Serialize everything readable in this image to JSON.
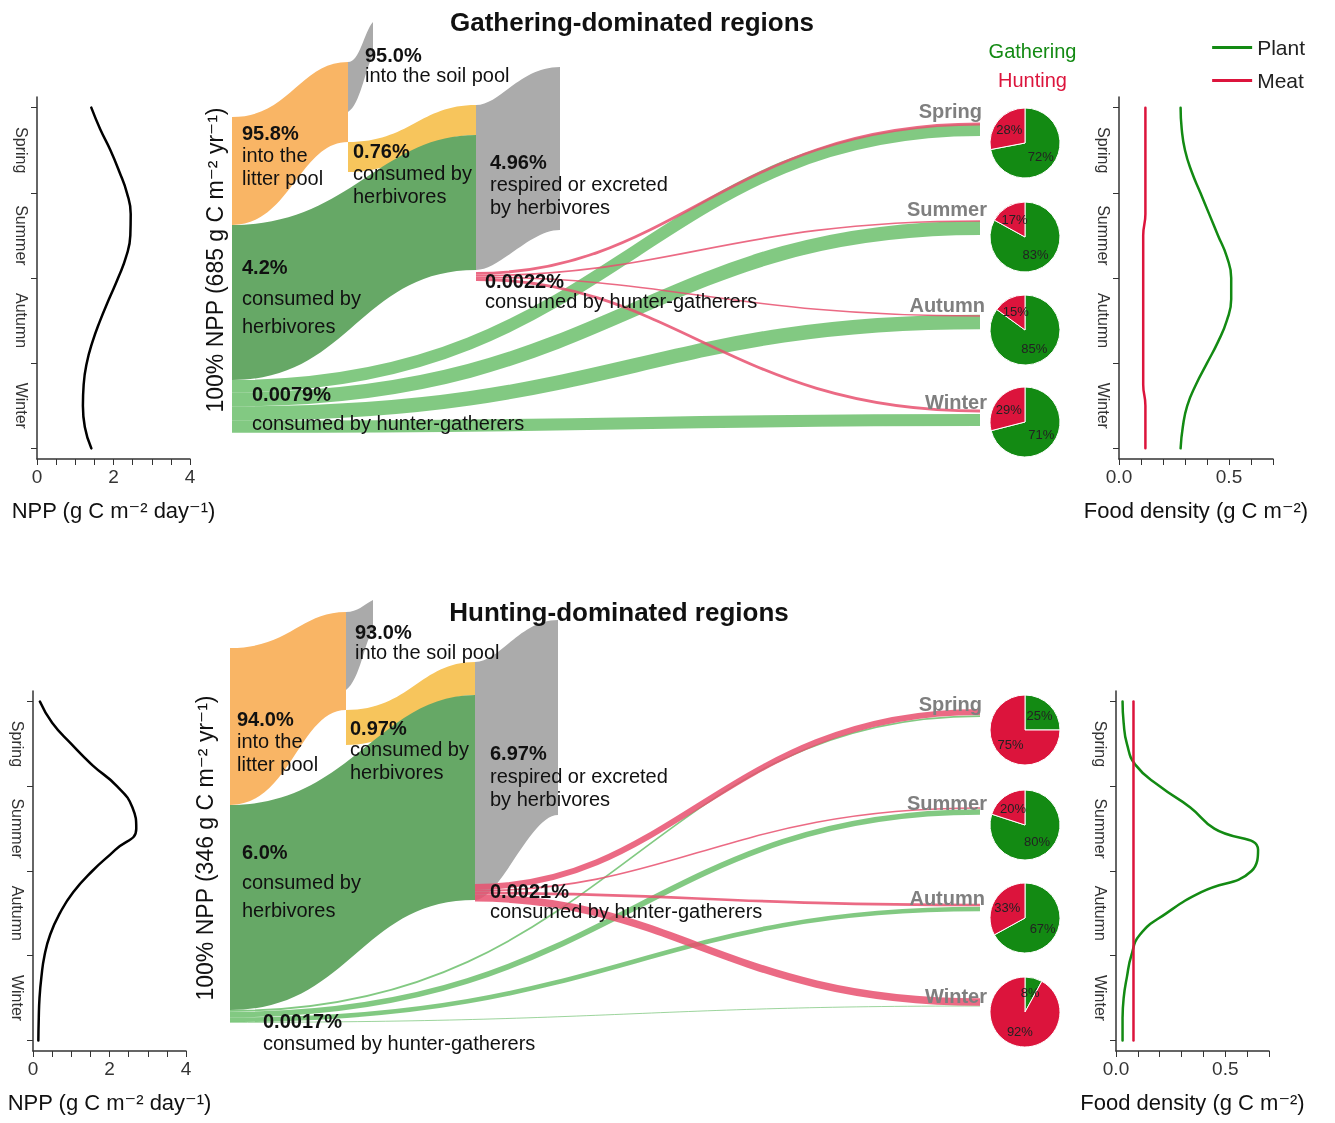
{
  "chart_data": [
    {
      "type": "line",
      "orientation": "horizontal",
      "categories": [
        null,
        null,
        "Spring",
        null,
        null,
        null,
        "Summer",
        null,
        null,
        null,
        "Autumn",
        null,
        null,
        null,
        "Winter",
        null,
        null
      ],
      "values": [
        1.42,
        1.65,
        1.92,
        2.15,
        2.35,
        2.45,
        2.44,
        2.33,
        2.12,
        1.88,
        1.65,
        1.45,
        1.3,
        1.22,
        1.2,
        1.25,
        1.42
      ],
      "color": "#000000",
      "xlim": [
        0,
        4
      ],
      "xticks": [
        0,
        {
          "value": 0.5,
          "label": null
        },
        {
          "value": 1,
          "label": null
        },
        {
          "value": 1.5,
          "label": null
        },
        2,
        {
          "value": 2.5,
          "label": null
        },
        {
          "value": 3,
          "label": null
        },
        {
          "value": 3.5,
          "label": null
        },
        4
      ],
      "xlabel": "NPP (g C m⁻² day⁻¹)",
      "marker": "none",
      "grid": false
    },
    {
      "type": "other",
      "title": "Gathering-dominated regions",
      "ylabel": "100% NPP (685 g C m⁻² yr⁻¹)",
      "annotations": [
        "95.8%",
        "into the litter pool",
        "95.0%",
        "into the soil pool",
        "0.76%",
        "consumed by herbivores",
        "4.96%",
        "respired or excreted by herbivores",
        "4.2%",
        "consumed by herbivores",
        "0.0022%",
        "consumed by hunter-gatherers",
        "0.0079%",
        "consumed by hunter-gatherers",
        "Spring",
        "Summer",
        "Autumn",
        "Winter"
      ]
    },
    {
      "type": "pie",
      "categories": [
        "Gathering",
        "Hunting"
      ],
      "values": [
        72,
        28
      ],
      "colors": [
        "#138a13",
        "#dc143c"
      ],
      "value_labels": [
        "72%",
        "28%"
      ]
    },
    {
      "type": "pie",
      "categories": [
        null,
        null
      ],
      "values": [
        83,
        17
      ],
      "colors": [
        "#138a13",
        "#dc143c"
      ],
      "value_labels": [
        "83%",
        "17%"
      ]
    },
    {
      "type": "pie",
      "categories": [
        null,
        null
      ],
      "values": [
        85,
        15
      ],
      "colors": [
        "#138a13",
        "#dc143c"
      ],
      "value_labels": [
        "85%",
        "15%"
      ]
    },
    {
      "type": "pie",
      "categories": [
        null,
        null
      ],
      "values": [
        71,
        29
      ],
      "colors": [
        "#138a13",
        "#dc143c"
      ],
      "value_labels": [
        "71%",
        "29%"
      ]
    },
    {
      "type": "line",
      "orientation": "horizontal",
      "categories": [
        null,
        null,
        "Spring",
        null,
        null,
        null,
        "Summer",
        null,
        null,
        null,
        "Autumn",
        null,
        null,
        null,
        "Winter",
        null,
        null
      ],
      "series": [
        {
          "name": "Plant",
          "color": "#138a13",
          "values": [
            0.28,
            0.285,
            0.3,
            0.33,
            0.37,
            0.41,
            0.45,
            0.49,
            0.51,
            0.51,
            0.49,
            0.45,
            0.4,
            0.35,
            0.31,
            0.29,
            0.28
          ]
        },
        {
          "name": "Meat",
          "color": "#dc143c",
          "values": [
            0.12,
            0.12,
            0.12,
            0.12,
            0.12,
            0.12,
            0.11,
            0.11,
            0.11,
            0.11,
            0.11,
            0.11,
            0.11,
            0.11,
            0.12,
            0.12,
            0.12
          ]
        }
      ],
      "xlim": [
        0,
        0.7
      ],
      "xticks": [
        {
          "value": 0,
          "label": "0.0"
        },
        {
          "value": 0.1,
          "label": null
        },
        {
          "value": 0.2,
          "label": null
        },
        {
          "value": 0.3,
          "label": null
        },
        {
          "value": 0.4,
          "label": null
        },
        {
          "value": 0.5,
          "label": "0.5"
        },
        {
          "value": 0.6,
          "label": null
        },
        {
          "value": 0.7,
          "label": null
        }
      ],
      "xlabel": "Food density (g C m⁻²)",
      "marker": "none",
      "grid": false,
      "legend": "top right"
    },
    {
      "type": "line",
      "orientation": "horizontal",
      "categories": [
        null,
        null,
        "Spring",
        null,
        null,
        null,
        "Summer",
        null,
        null,
        null,
        "Autumn",
        null,
        null,
        null,
        "Winter",
        null,
        null
      ],
      "values": [
        0.18,
        0.5,
        1.0,
        1.55,
        2.2,
        2.6,
        2.7,
        2.15,
        1.55,
        1.05,
        0.7,
        0.45,
        0.3,
        0.22,
        0.17,
        0.15,
        0.14
      ],
      "color": "#000000",
      "xlim": [
        0,
        4
      ],
      "xticks": [
        0,
        {
          "value": 0.5,
          "label": null
        },
        {
          "value": 1,
          "label": null
        },
        {
          "value": 1.5,
          "label": null
        },
        2,
        {
          "value": 2.5,
          "label": null
        },
        {
          "value": 3,
          "label": null
        },
        {
          "value": 3.5,
          "label": null
        },
        4
      ],
      "xlabel": "NPP (g C m⁻² day⁻¹)",
      "marker": "none",
      "grid": false
    },
    {
      "type": "other",
      "title": "Hunting-dominated regions",
      "ylabel": "100% NPP (346 g C m⁻² yr⁻¹)",
      "annotations": [
        "94.0%",
        "into the litter pool",
        "93.0%",
        "into the soil pool",
        "0.97%",
        "consumed by herbivores",
        "6.97%",
        "respired or excreted by herbivores",
        "6.0%",
        "consumed by herbivores",
        "0.0021%",
        "consumed by hunter-gatherers",
        "0.0017%",
        "consumed by hunter-gatherers",
        "Spring",
        "Summer",
        "Autumn",
        "Winter"
      ]
    },
    {
      "type": "pie",
      "categories": [
        null,
        null
      ],
      "values": [
        25,
        75
      ],
      "colors": [
        "#138a13",
        "#dc143c"
      ],
      "value_labels": [
        "25%",
        "75%"
      ]
    },
    {
      "type": "pie",
      "categories": [
        null,
        null
      ],
      "values": [
        80,
        20
      ],
      "colors": [
        "#138a13",
        "#dc143c"
      ],
      "value_labels": [
        "80%",
        "20%"
      ]
    },
    {
      "type": "pie",
      "categories": [
        null,
        null
      ],
      "values": [
        67,
        33
      ],
      "colors": [
        "#138a13",
        "#dc143c"
      ],
      "value_labels": [
        "67%",
        "33%"
      ]
    },
    {
      "type": "pie",
      "categories": [
        null,
        null
      ],
      "values": [
        8,
        92
      ],
      "colors": [
        "#138a13",
        "#dc143c"
      ],
      "value_labels": [
        "8%",
        "92%"
      ]
    },
    {
      "type": "line",
      "orientation": "horizontal",
      "categories": [
        null,
        null,
        "Spring",
        null,
        null,
        null,
        "Summer",
        null,
        null,
        null,
        "Autumn",
        null,
        null,
        null,
        "Winter",
        null,
        null
      ],
      "series": [
        {
          "color": "#138a13",
          "values": [
            0.03,
            0.035,
            0.05,
            0.09,
            0.2,
            0.34,
            0.45,
            0.65,
            0.62,
            0.39,
            0.23,
            0.11,
            0.07,
            0.05,
            0.035,
            0.03,
            0.03
          ]
        },
        {
          "color": "#dc143c",
          "values": [
            0.08,
            0.08,
            0.08,
            0.08,
            0.08,
            0.08,
            0.08,
            0.08,
            0.08,
            0.08,
            0.08,
            0.08,
            0.08,
            0.08,
            0.08,
            0.08,
            0.08
          ]
        }
      ],
      "xlim": [
        0,
        0.7
      ],
      "xticks": [
        {
          "value": 0,
          "label": "0.0"
        },
        {
          "value": 0.1,
          "label": null
        },
        {
          "value": 0.2,
          "label": null
        },
        {
          "value": 0.3,
          "label": null
        },
        {
          "value": 0.4,
          "label": null
        },
        {
          "value": 0.5,
          "label": "0.5"
        },
        {
          "value": 0.6,
          "label": null
        },
        {
          "value": 0.7,
          "label": null
        }
      ],
      "xlabel": "Food density (g C m⁻²)",
      "marker": "none",
      "grid": false
    }
  ]
}
